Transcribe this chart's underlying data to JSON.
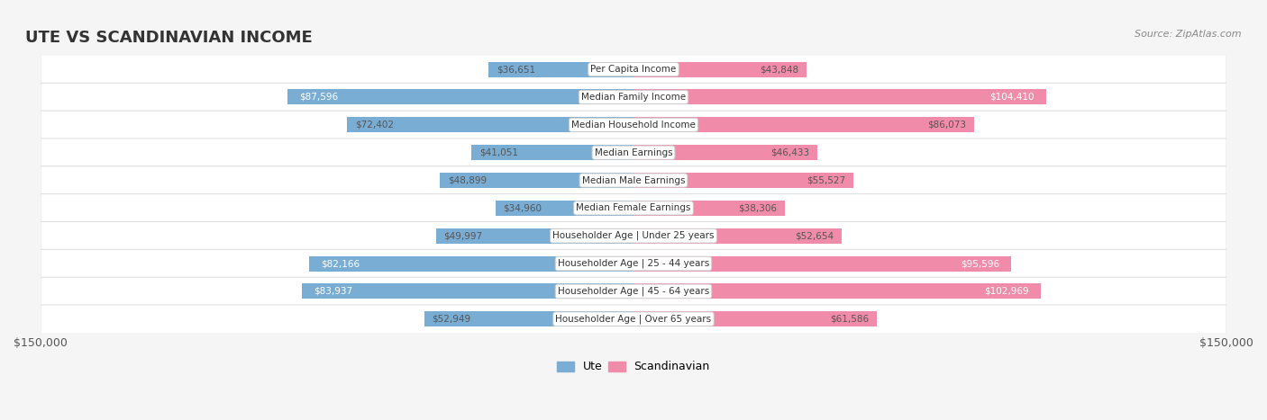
{
  "title": "UTE VS SCANDINAVIAN INCOME",
  "source": "Source: ZipAtlas.com",
  "categories": [
    "Per Capita Income",
    "Median Family Income",
    "Median Household Income",
    "Median Earnings",
    "Median Male Earnings",
    "Median Female Earnings",
    "Householder Age | Under 25 years",
    "Householder Age | 25 - 44 years",
    "Householder Age | 45 - 64 years",
    "Householder Age | Over 65 years"
  ],
  "ute_values": [
    36651,
    87596,
    72402,
    41051,
    48899,
    34960,
    49997,
    82166,
    83937,
    52949
  ],
  "scandinavian_values": [
    43848,
    104410,
    86073,
    46433,
    55527,
    38306,
    52654,
    95596,
    102969,
    61586
  ],
  "ute_labels": [
    "$36,651",
    "$87,596",
    "$72,402",
    "$41,051",
    "$48,899",
    "$34,960",
    "$49,997",
    "$82,166",
    "$83,937",
    "$52,949"
  ],
  "scandinavian_labels": [
    "$43,848",
    "$104,410",
    "$86,073",
    "$46,433",
    "$55,527",
    "$38,306",
    "$52,654",
    "$95,596",
    "$102,969",
    "$61,586"
  ],
  "ute_color": "#7aadd4",
  "scandinavian_color": "#f08caa",
  "ute_label_color_normal": "#555555",
  "scandinavian_label_color_normal": "#555555",
  "ute_label_color_inside": "#ffffff",
  "scandinavian_label_color_inside": "#ffffff",
  "background_color": "#f5f5f5",
  "row_bg_color": "#ffffff",
  "row_border_color": "#dddddd",
  "title_color": "#333333",
  "axis_max": 150000,
  "bar_height": 0.55,
  "legend_ute": "Ute",
  "legend_scandinavian": "Scandinavian",
  "inside_label_indices": [
    1,
    7,
    8
  ],
  "scandinavian_inside_label_indices": [
    1,
    7,
    8
  ]
}
